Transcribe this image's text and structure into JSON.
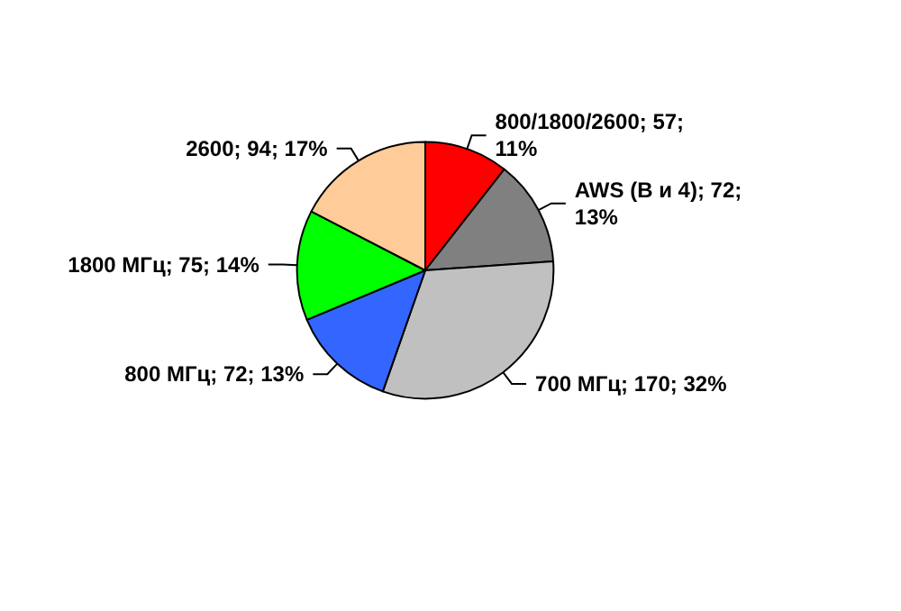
{
  "chart_data": {
    "type": "pie",
    "categories": [
      "800/1800/2600",
      "AWS (B и 4)",
      "700 МГц",
      "800 МГц",
      "1800 МГц",
      "2600"
    ],
    "values": [
      57,
      72,
      170,
      72,
      75,
      94
    ],
    "colors": [
      "#ff0000",
      "#808080",
      "#c0c0c0",
      "#3366ff",
      "#00ff00",
      "#ffcc99"
    ],
    "value_labels": [
      "57; 11%",
      "72; 13%",
      "170; 32%",
      "72; 13%",
      "75; 14%",
      "94; 17%"
    ]
  }
}
